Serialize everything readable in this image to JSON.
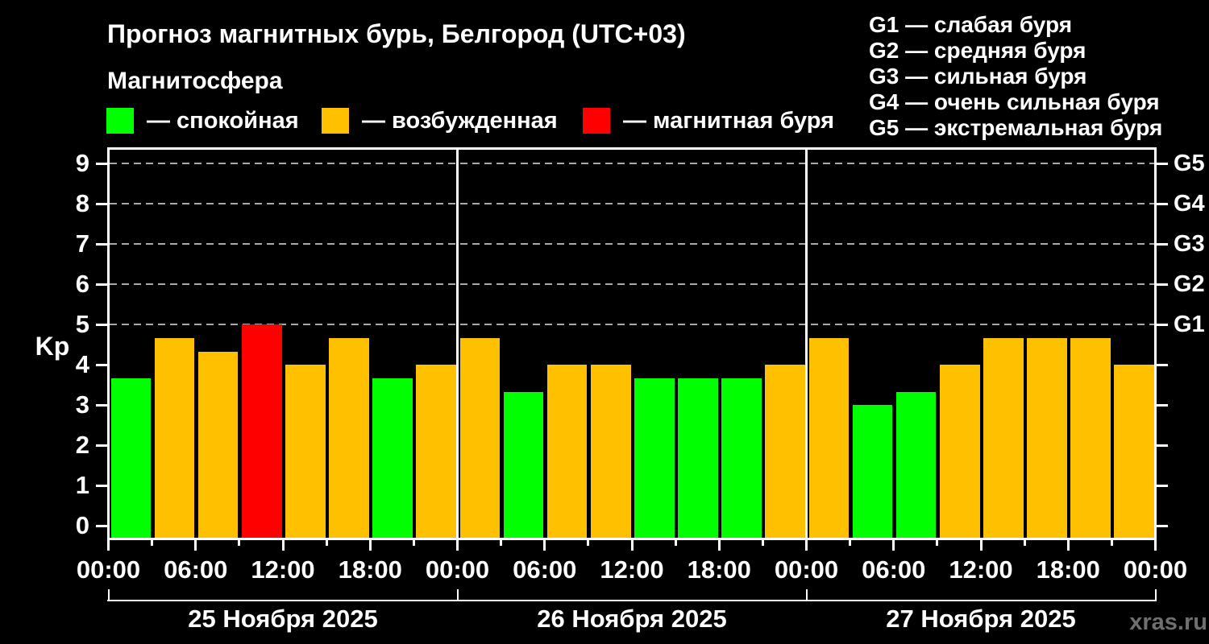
{
  "title": "Прогноз магнитных бурь, Белгород (UTC+03)",
  "subtitle": "Магнитосфера",
  "watermark": "xras.ru",
  "legend": [
    {
      "key": "quiet",
      "label": "— спокойная",
      "color": "#00ff00"
    },
    {
      "key": "unsettled",
      "label": "— возбужденная",
      "color": "#ffc000"
    },
    {
      "key": "storm",
      "label": "— магнитная буря",
      "color": "#ff0000"
    }
  ],
  "g_scale": [
    {
      "code": "G1",
      "desc": "слабая буря"
    },
    {
      "code": "G2",
      "desc": "средняя буря"
    },
    {
      "code": "G3",
      "desc": "сильная буря"
    },
    {
      "code": "G4",
      "desc": "очень сильная буря"
    },
    {
      "code": "G5",
      "desc": "экстремальная буря"
    }
  ],
  "chart_data": {
    "type": "bar",
    "title": "Прогноз магнитных бурь, Белгород (UTC+03)",
    "ylabel": "Kp",
    "ylim": [
      0,
      9.3
    ],
    "yticks": [
      0,
      1,
      2,
      3,
      4,
      5,
      6,
      7,
      8,
      9
    ],
    "dashed_gridlines": [
      5,
      6,
      7,
      8,
      9
    ],
    "right_axis": [
      {
        "value": 5,
        "label": "G1"
      },
      {
        "value": 6,
        "label": "G2"
      },
      {
        "value": 7,
        "label": "G3"
      },
      {
        "value": 8,
        "label": "G4"
      },
      {
        "value": 9,
        "label": "G5"
      }
    ],
    "time_tick_labels": [
      "00:00",
      "06:00",
      "12:00",
      "18:00"
    ],
    "end_time_label": "00:00",
    "bar_colors": {
      "quiet": "#00ff00",
      "unsettled": "#ffc000",
      "storm": "#ff0000"
    },
    "days": [
      {
        "date": "25 Ноября 2025",
        "kp": [
          3.67,
          4.67,
          4.33,
          5.0,
          4.0,
          4.67,
          3.67,
          4.0
        ],
        "states": [
          "quiet",
          "unsettled",
          "unsettled",
          "storm",
          "unsettled",
          "unsettled",
          "quiet",
          "unsettled"
        ]
      },
      {
        "date": "26 Ноября 2025",
        "kp": [
          4.67,
          3.33,
          4.0,
          4.0,
          3.67,
          3.67,
          3.67,
          4.0
        ],
        "states": [
          "unsettled",
          "quiet",
          "unsettled",
          "unsettled",
          "quiet",
          "quiet",
          "quiet",
          "unsettled"
        ]
      },
      {
        "date": "27 Ноября 2025",
        "kp": [
          4.67,
          3.0,
          3.33,
          4.0,
          4.67,
          4.67,
          4.67,
          4.0
        ],
        "states": [
          "unsettled",
          "quiet",
          "quiet",
          "unsettled",
          "unsettled",
          "unsettled",
          "unsettled",
          "unsettled"
        ]
      }
    ]
  }
}
